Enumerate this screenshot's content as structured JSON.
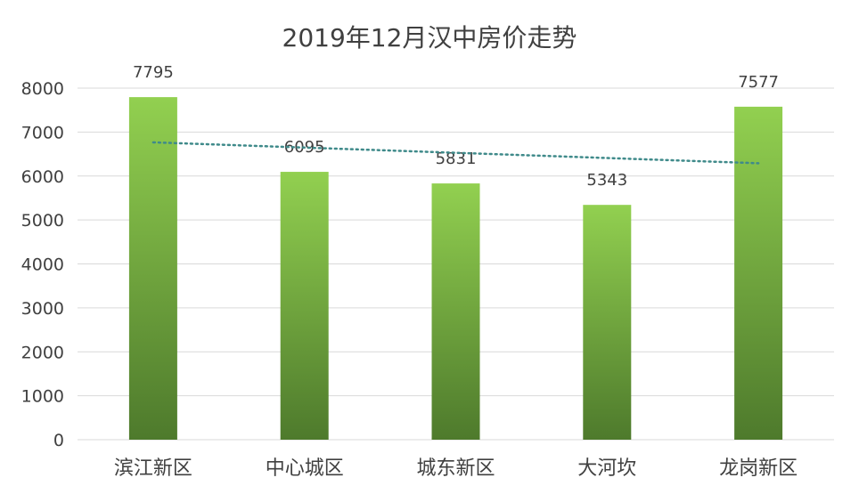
{
  "chart_data": {
    "type": "bar",
    "title": "2019年12月汉中房价走势",
    "categories": [
      "滨江新区",
      "中心城区",
      "城东新区",
      "大河坎",
      "龙岗新区"
    ],
    "values": [
      7795,
      6095,
      5831,
      5343,
      7577
    ],
    "data_labels": [
      "7795",
      "6095",
      "5831",
      "5343",
      "7577"
    ],
    "y_ticks": [
      "0",
      "1000",
      "2000",
      "3000",
      "4000",
      "5000",
      "6000",
      "7000",
      "8000"
    ],
    "ylim": [
      0,
      8000
    ],
    "grid": true,
    "trendline": {
      "type": "linear",
      "style": "dotted"
    },
    "colors": {
      "bar_top": "#92d050",
      "bar_bottom": "#4e7a2c",
      "trendline": "#3f8a8a",
      "grid": "#d9d9d9",
      "text": "#404040"
    }
  }
}
